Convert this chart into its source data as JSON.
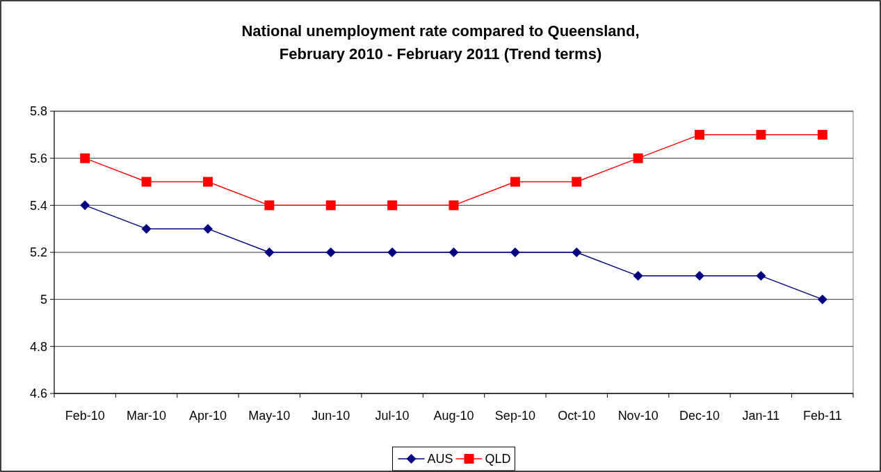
{
  "chart_data": {
    "type": "line",
    "title": "National unemployment rate compared to Queensland,\nFebruary 2010 - February 2011 (Trend terms)",
    "categories": [
      "Feb-10",
      "Mar-10",
      "Apr-10",
      "May-10",
      "Jun-10",
      "Jul-10",
      "Aug-10",
      "Sep-10",
      "Oct-10",
      "Nov-10",
      "Dec-10",
      "Jan-11",
      "Feb-11"
    ],
    "series": [
      {
        "name": "AUS",
        "color": "#000080",
        "marker": "diamond",
        "values": [
          5.4,
          5.3,
          5.3,
          5.2,
          5.2,
          5.2,
          5.2,
          5.2,
          5.2,
          5.1,
          5.1,
          5.1,
          5.0
        ]
      },
      {
        "name": "QLD",
        "color": "#ff0000",
        "marker": "square",
        "values": [
          5.6,
          5.5,
          5.5,
          5.4,
          5.4,
          5.4,
          5.4,
          5.5,
          5.5,
          5.6,
          5.7,
          5.7,
          5.7
        ]
      }
    ],
    "ylim": [
      4.6,
      5.8
    ],
    "yticks": [
      4.6,
      4.8,
      5,
      5.2,
      5.4,
      5.6,
      5.8
    ],
    "grid": "y",
    "legend": "bottom",
    "line_style": "solid"
  }
}
